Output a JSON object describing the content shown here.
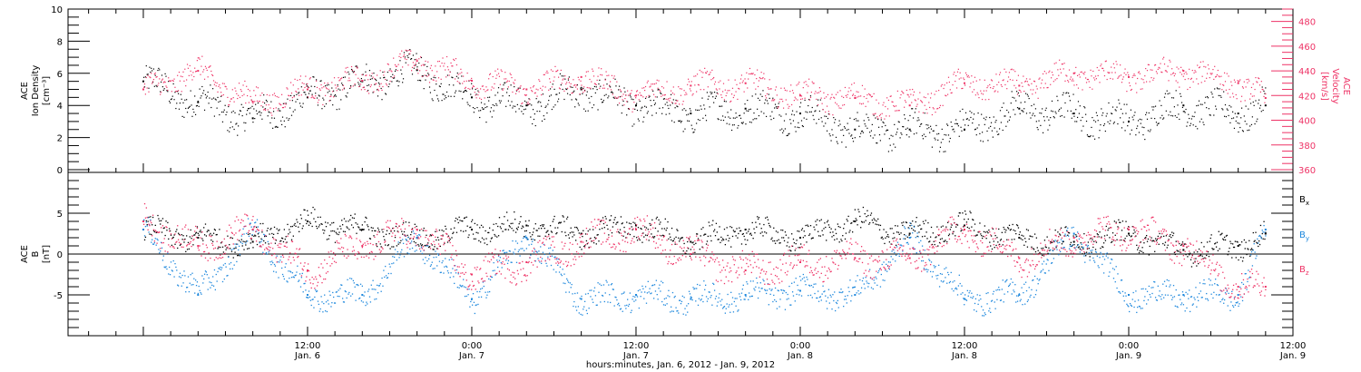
{
  "chart_data": [
    {
      "type": "scatter",
      "panel": "top",
      "ylabel_left": [
        "ACE",
        "Ion Density",
        "[cm⁻³]"
      ],
      "ylabel_right": [
        "ACE",
        "Velocity",
        "[km/s]"
      ],
      "ylim_left": [
        0,
        10
      ],
      "yticks_left": [
        0,
        2,
        4,
        6,
        8,
        10
      ],
      "ylim_right": [
        360,
        490
      ],
      "yticks_right": [
        360,
        380,
        400,
        420,
        440,
        460,
        480
      ],
      "series": [
        {
          "axis": "left",
          "color": "#000000",
          "x": [
            0,
            4,
            8,
            12,
            16,
            20,
            24,
            28,
            32,
            36,
            40,
            44,
            48,
            52,
            56,
            60,
            64,
            68,
            72,
            76,
            80,
            82
          ],
          "y": [
            5.5,
            4.2,
            3.2,
            4.5,
            5.5,
            6.2,
            4.5,
            4.0,
            5.0,
            4.0,
            3.5,
            3.8,
            3.5,
            2.5,
            2.5,
            2.5,
            3.8,
            3.5,
            3.0,
            4.0,
            3.5,
            4.0
          ]
        },
        {
          "axis": "right",
          "color": "#ee3366",
          "x": [
            0,
            4,
            8,
            12,
            16,
            20,
            24,
            28,
            32,
            36,
            40,
            44,
            48,
            52,
            56,
            60,
            64,
            68,
            72,
            76,
            80,
            82
          ],
          "y": [
            425,
            440,
            415,
            425,
            432,
            448,
            432,
            425,
            435,
            420,
            428,
            430,
            420,
            418,
            412,
            430,
            428,
            438,
            435,
            440,
            430,
            418
          ]
        }
      ]
    },
    {
      "type": "scatter",
      "panel": "bottom",
      "ylabel": [
        "ACE",
        "B",
        "[nT]"
      ],
      "ylim": [
        -10,
        10
      ],
      "yticks": [
        -5,
        0,
        5
      ],
      "series": [
        {
          "name": "B_x",
          "color": "#000000",
          "x": [
            0,
            4,
            8,
            12,
            16,
            20,
            24,
            28,
            32,
            36,
            40,
            44,
            48,
            52,
            56,
            60,
            64,
            68,
            72,
            76,
            80,
            82
          ],
          "y": [
            3.0,
            2.0,
            1.5,
            4.0,
            3.0,
            2.0,
            3.0,
            3.5,
            2.5,
            3.5,
            1.5,
            3.0,
            2.0,
            4.0,
            2.5,
            3.5,
            2.0,
            1.5,
            2.5,
            0.5,
            1.0,
            2.5
          ]
        },
        {
          "name": "B_y",
          "color": "#1e88dd",
          "x": [
            0,
            4,
            8,
            12,
            16,
            20,
            24,
            28,
            32,
            36,
            40,
            44,
            48,
            52,
            56,
            60,
            64,
            68,
            72,
            76,
            80,
            82
          ],
          "y": [
            3.0,
            -5.0,
            3.0,
            -5.0,
            -5.0,
            2.0,
            -5.5,
            2.0,
            -5.5,
            -5.0,
            -5.5,
            -5.0,
            -4.5,
            -5.0,
            2.0,
            -5.5,
            -5.0,
            2.5,
            -5.0,
            -5.0,
            -5.0,
            3.0
          ]
        },
        {
          "name": "B_z",
          "color": "#ee3366",
          "x": [
            0,
            4,
            8,
            12,
            16,
            20,
            24,
            28,
            32,
            36,
            40,
            44,
            48,
            52,
            56,
            60,
            64,
            68,
            72,
            76,
            80,
            82
          ],
          "y": [
            4.0,
            1.0,
            3.0,
            -2.0,
            1.0,
            3.0,
            -2.5,
            -1.0,
            1.5,
            3.0,
            0.0,
            -2.0,
            -1.0,
            -0.5,
            -0.5,
            3.0,
            -0.5,
            2.0,
            3.0,
            1.0,
            -4.0,
            -4.0
          ]
        }
      ]
    }
  ],
  "xaxis": {
    "title": "hours:minutes, Jan.  6, 2012 - Jan.  9, 2012",
    "ticks": [
      {
        "hours": 12,
        "time": "12:00",
        "date": "Jan. 6"
      },
      {
        "hours": 24,
        "time": "0:00",
        "date": "Jan. 7"
      },
      {
        "hours": 36,
        "time": "12:00",
        "date": "Jan. 7"
      },
      {
        "hours": 48,
        "time": "0:00",
        "date": "Jan. 8"
      },
      {
        "hours": 60,
        "time": "12:00",
        "date": "Jan. 8"
      },
      {
        "hours": 72,
        "time": "0:00",
        "date": "Jan. 9"
      },
      {
        "hours": 84,
        "time": "12:00",
        "date": "Jan. 9"
      }
    ]
  },
  "legend": {
    "bx": {
      "base": "B",
      "sub": "x",
      "color": "#000000"
    },
    "by": {
      "base": "B",
      "sub": "y",
      "color": "#1e88dd"
    },
    "bz": {
      "base": "B",
      "sub": "z",
      "color": "#ee3366"
    }
  }
}
